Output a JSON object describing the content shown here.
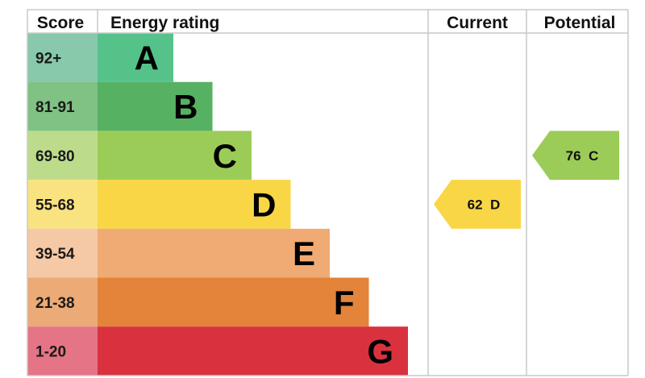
{
  "chart_data": {
    "type": "bar",
    "headers": {
      "score": "Score",
      "energy_rating": "Energy rating",
      "current": "Current",
      "potential": "Potential"
    },
    "bands": [
      {
        "letter": "A",
        "score_range": "92+",
        "min_score": 92,
        "color": "#55c28a",
        "score_bg": "#87c9aa"
      },
      {
        "letter": "B",
        "score_range": "81-91",
        "min_score": 81,
        "color": "#56b163",
        "score_bg": "#80c184"
      },
      {
        "letter": "C",
        "score_range": "69-80",
        "min_score": 69,
        "color": "#9ccc58",
        "score_bg": "#bcdc8c"
      },
      {
        "letter": "D",
        "score_range": "55-68",
        "min_score": 55,
        "color": "#f8d646",
        "score_bg": "#f9e380"
      },
      {
        "letter": "E",
        "score_range": "39-54",
        "min_score": 39,
        "color": "#f0ab74",
        "score_bg": "#f5c8a6"
      },
      {
        "letter": "F",
        "score_range": "21-38",
        "min_score": 21,
        "color": "#e4833a",
        "score_bg": "#ebaa76"
      },
      {
        "letter": "G",
        "score_range": "1-20",
        "min_score": 1,
        "color": "#d9323e",
        "score_bg": "#e47486"
      }
    ],
    "current": {
      "score": 62,
      "band": "D",
      "label": "62  D"
    },
    "potential": {
      "score": 76,
      "band": "C",
      "label": "76  C"
    }
  }
}
